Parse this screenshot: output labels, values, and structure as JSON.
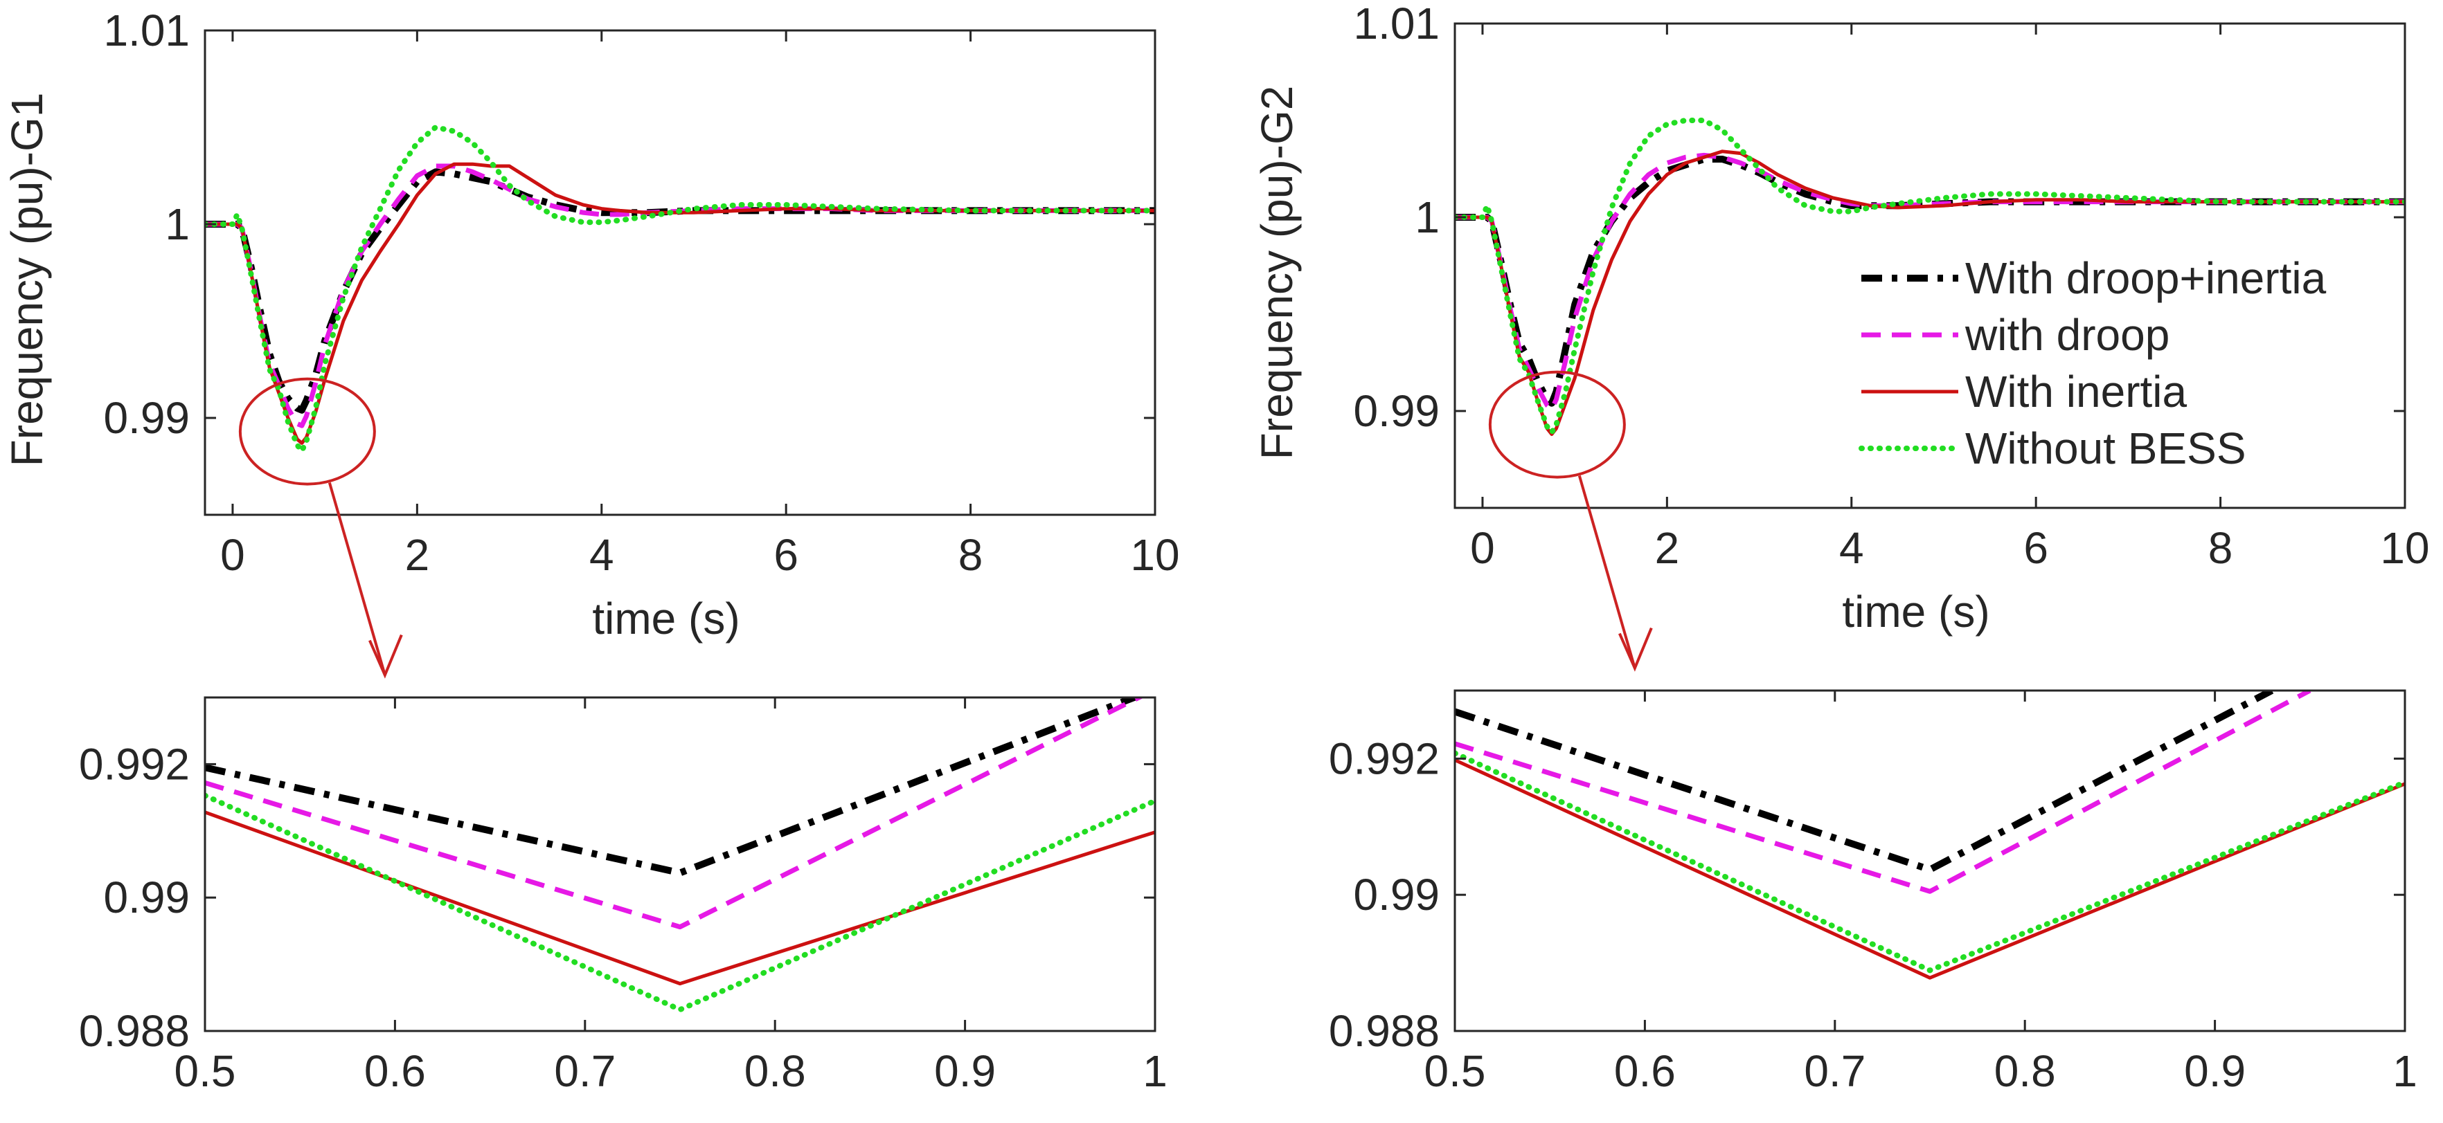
{
  "legend_entries": [
    {
      "name": "With droop+inertia",
      "color": "#000000",
      "style": "dashdot"
    },
    {
      "name": "with droop",
      "color": "#e619e6",
      "style": "dashed"
    },
    {
      "name": "With inertia",
      "color": "#cc1111",
      "style": "solid"
    },
    {
      "name": "Without BESS",
      "color": "#22dd22",
      "style": "dotted"
    }
  ],
  "colors": {
    "axis": "#262626",
    "callout": "#cc2222"
  },
  "chart_data": [
    {
      "id": "g1_main",
      "type": "line",
      "xlabel": "time (s)",
      "ylabel": "Frequency (pu)-G1",
      "xlim": [
        -0.3,
        10
      ],
      "ylim": [
        0.985,
        1.01
      ],
      "xticks": [
        0,
        2,
        4,
        6,
        8,
        10
      ],
      "xtick_labels": [
        "0",
        "2",
        "4",
        "6",
        "8",
        "10"
      ],
      "yticks": [
        0.99,
        1.0,
        1.01
      ],
      "ytick_labels": [
        "0.99",
        "1",
        "1.01"
      ],
      "grid": false,
      "legend": "none",
      "series": [
        {
          "name": "With droop+inertia",
          "x": [
            -0.3,
            0,
            0.05,
            0.1,
            0.2,
            0.3,
            0.4,
            0.5,
            0.6,
            0.7,
            0.75,
            0.8,
            0.9,
            1,
            1.2,
            1.4,
            1.6,
            1.8,
            2,
            2.2,
            2.4,
            2.6,
            2.8,
            3,
            3.2,
            3.5,
            3.8,
            4,
            4.2,
            4.5,
            5,
            5.5,
            6,
            6.5,
            7,
            8,
            9,
            10
          ],
          "y": [
            1,
            1,
            1,
            0.9998,
            0.9978,
            0.9955,
            0.9933,
            0.9919,
            0.991,
            0.9905,
            0.9904,
            0.9909,
            0.9922,
            0.994,
            0.9965,
            0.9985,
            0.9998,
            1.001,
            1.0022,
            1.0027,
            1.0026,
            1.0024,
            1.0022,
            1.0018,
            1.0014,
            1.001,
            1.0007,
            1.0006,
            1.0006,
            1.0006,
            1.0007,
            1.0007,
            1.0007,
            1.0007,
            1.0007,
            1.0007,
            1.0007,
            1.0007
          ]
        },
        {
          "name": "with droop",
          "x": [
            -0.3,
            0,
            0.05,
            0.1,
            0.2,
            0.3,
            0.4,
            0.5,
            0.6,
            0.7,
            0.75,
            0.8,
            0.9,
            1,
            1.2,
            1.4,
            1.6,
            1.8,
            2,
            2.2,
            2.4,
            2.6,
            2.8,
            3,
            3.2,
            3.5,
            3.8,
            4,
            4.2,
            4.5,
            5,
            5.5,
            6,
            6.5,
            7,
            8,
            9,
            10
          ],
          "y": [
            1,
            1,
            1,
            0.9998,
            0.9976,
            0.9951,
            0.9928,
            0.9917,
            0.9905,
            0.9897,
            0.9896,
            0.9901,
            0.9918,
            0.9938,
            0.9966,
            0.9986,
            1,
            1.0013,
            1.0025,
            1.003,
            1.003,
            1.0027,
            1.0023,
            1.0018,
            1.0013,
            1.0009,
            1.0006,
            1.0005,
            1.0005,
            1.0006,
            1.0007,
            1.0008,
            1.0008,
            1.0008,
            1.0007,
            1.0007,
            1.0007,
            1.0007
          ]
        },
        {
          "name": "With inertia",
          "x": [
            -0.3,
            0,
            0.05,
            0.1,
            0.2,
            0.3,
            0.4,
            0.5,
            0.6,
            0.7,
            0.75,
            0.8,
            0.9,
            1,
            1.2,
            1.4,
            1.6,
            1.8,
            2,
            2.2,
            2.4,
            2.6,
            2.8,
            3,
            3.2,
            3.5,
            3.8,
            4,
            4.2,
            4.5,
            5,
            5.5,
            6,
            6.5,
            7,
            8,
            9,
            10
          ],
          "y": [
            1,
            1,
            1,
            0.9998,
            0.9975,
            0.995,
            0.9926,
            0.9913,
            0.99,
            0.9889,
            0.9887,
            0.989,
            0.9903,
            0.992,
            0.995,
            0.9971,
            0.9986,
            1,
            1.0015,
            1.0026,
            1.0031,
            1.0031,
            1.003,
            1.003,
            1.0024,
            1.0015,
            1.001,
            1.0008,
            1.0007,
            1.0006,
            1.0006,
            1.0007,
            1.0008,
            1.0008,
            1.0007,
            1.0007,
            1.0007,
            1.0007
          ]
        },
        {
          "name": "Without BESS",
          "x": [
            -0.3,
            0,
            0.05,
            0.1,
            0.2,
            0.3,
            0.4,
            0.5,
            0.6,
            0.7,
            0.75,
            0.8,
            0.9,
            1,
            1.2,
            1.4,
            1.6,
            1.8,
            2,
            2.2,
            2.4,
            2.6,
            2.8,
            3,
            3.2,
            3.5,
            3.8,
            4,
            4.2,
            4.5,
            5,
            5.5,
            6,
            6.5,
            7,
            8,
            9,
            10
          ],
          "y": [
            1,
            1,
            1.0005,
            0.9998,
            0.9974,
            0.9949,
            0.9925,
            0.9915,
            0.9898,
            0.9886,
            0.9883,
            0.9888,
            0.9905,
            0.9928,
            0.9962,
            0.9988,
            1.0008,
            1.0028,
            1.0042,
            1.005,
            1.0048,
            1.0042,
            1.0032,
            1.002,
            1.0012,
            1.0004,
            1.0001,
            1.0001,
            1.0002,
            1.0004,
            1.0008,
            1.001,
            1.001,
            1.0009,
            1.0008,
            1.0007,
            1.0007,
            1.0007
          ]
        }
      ]
    },
    {
      "id": "g2_main",
      "type": "line",
      "xlabel": "time (s)",
      "ylabel": "Frequency (pu)-G2",
      "xlim": [
        -0.3,
        10
      ],
      "ylim": [
        0.985,
        1.01
      ],
      "xticks": [
        0,
        2,
        4,
        6,
        8,
        10
      ],
      "xtick_labels": [
        "0",
        "2",
        "4",
        "6",
        "8",
        "10"
      ],
      "yticks": [
        0.99,
        1.0,
        1.01
      ],
      "ytick_labels": [
        "0.99",
        "1",
        "1.01"
      ],
      "grid": false,
      "legend": "right",
      "series": [
        {
          "name": "With droop+inertia",
          "x": [
            -0.3,
            0,
            0.05,
            0.1,
            0.2,
            0.3,
            0.4,
            0.5,
            0.6,
            0.7,
            0.75,
            0.8,
            0.9,
            1,
            1.2,
            1.4,
            1.6,
            1.8,
            2,
            2.2,
            2.4,
            2.6,
            2.8,
            3,
            3.2,
            3.5,
            3.8,
            4,
            4.2,
            4.5,
            5,
            5.5,
            6,
            6.5,
            7,
            8,
            9,
            10
          ],
          "y": [
            1,
            1,
            1,
            0.9998,
            0.9977,
            0.9955,
            0.9935,
            0.9927,
            0.9915,
            0.9906,
            0.9904,
            0.991,
            0.9932,
            0.9955,
            0.9982,
            0.9998,
            1.001,
            1.0018,
            1.0024,
            1.0027,
            1.003,
            1.003,
            1.0027,
            1.0023,
            1.0018,
            1.0012,
            1.0008,
            1.0006,
            1.0006,
            1.0006,
            1.0007,
            1.0008,
            1.0008,
            1.0008,
            1.0008,
            1.0008,
            1.0008,
            1.0008
          ]
        },
        {
          "name": "with droop",
          "x": [
            -0.3,
            0,
            0.05,
            0.1,
            0.2,
            0.3,
            0.4,
            0.5,
            0.6,
            0.7,
            0.75,
            0.8,
            0.9,
            1,
            1.2,
            1.4,
            1.6,
            1.8,
            2,
            2.2,
            2.4,
            2.6,
            2.8,
            3,
            3.2,
            3.5,
            3.8,
            4,
            4.2,
            4.5,
            5,
            5.5,
            6,
            6.5,
            7,
            8,
            9,
            10
          ],
          "y": [
            1,
            1,
            1,
            0.9998,
            0.9976,
            0.9953,
            0.9932,
            0.9922,
            0.9912,
            0.9903,
            0.9901,
            0.9906,
            0.9926,
            0.9948,
            0.9978,
            0.9998,
            1.0012,
            1.0022,
            1.0028,
            1.0031,
            1.0032,
            1.0031,
            1.0028,
            1.0024,
            1.0019,
            1.0013,
            1.0009,
            1.0007,
            1.0006,
            1.0006,
            1.0007,
            1.0008,
            1.0008,
            1.0008,
            1.0008,
            1.0008,
            1.0008,
            1.0008
          ]
        },
        {
          "name": "With inertia",
          "x": [
            -0.3,
            0,
            0.05,
            0.1,
            0.2,
            0.3,
            0.4,
            0.5,
            0.6,
            0.7,
            0.75,
            0.8,
            0.9,
            1,
            1.2,
            1.4,
            1.6,
            1.8,
            2,
            2.2,
            2.4,
            2.6,
            2.8,
            3,
            3.2,
            3.5,
            3.8,
            4,
            4.2,
            4.5,
            5,
            5.5,
            6,
            6.5,
            7,
            8,
            9,
            10
          ],
          "y": [
            1,
            1,
            1,
            0.9998,
            0.9975,
            0.9951,
            0.9928,
            0.992,
            0.9905,
            0.9891,
            0.9888,
            0.9891,
            0.9904,
            0.9917,
            0.9952,
            0.9978,
            0.9998,
            1.0012,
            1.0022,
            1.0028,
            1.0031,
            1.0034,
            1.0033,
            1.0028,
            1.0022,
            1.0015,
            1.001,
            1.0008,
            1.0006,
            1.0005,
            1.0006,
            1.0008,
            1.0009,
            1.0009,
            1.0008,
            1.0008,
            1.0008,
            1.0008
          ]
        },
        {
          "name": "Without BESS",
          "x": [
            -0.3,
            0,
            0.05,
            0.1,
            0.2,
            0.3,
            0.4,
            0.5,
            0.6,
            0.7,
            0.75,
            0.8,
            0.9,
            1,
            1.2,
            1.4,
            1.6,
            1.8,
            2,
            2.2,
            2.4,
            2.6,
            2.8,
            3,
            3.2,
            3.5,
            3.8,
            4,
            4.2,
            4.5,
            5,
            5.5,
            6,
            6.5,
            7,
            8,
            9,
            10
          ],
          "y": [
            1,
            1,
            1.0006,
            0.9998,
            0.9974,
            0.995,
            0.9927,
            0.9919,
            0.9905,
            0.9892,
            0.9889,
            0.9893,
            0.991,
            0.9932,
            0.9972,
            1.0005,
            1.0028,
            1.0042,
            1.0048,
            1.005,
            1.005,
            1.0045,
            1.0035,
            1.0025,
            1.0015,
            1.0006,
            1.0003,
            1.0003,
            1.0005,
            1.0007,
            1.001,
            1.0012,
            1.0012,
            1.0011,
            1.001,
            1.0008,
            1.0008,
            1.0008
          ]
        }
      ]
    },
    {
      "id": "g1_zoom",
      "type": "line",
      "xlabel": "",
      "ylabel": "",
      "xlim": [
        0.5,
        1
      ],
      "ylim": [
        0.988,
        0.993
      ],
      "xticks": [
        0.5,
        0.6,
        0.7,
        0.8,
        0.9,
        1
      ],
      "xtick_labels": [
        "0.5",
        "0.6",
        "0.7",
        "0.8",
        "0.9",
        "1"
      ],
      "yticks": [
        0.988,
        0.99,
        0.992
      ],
      "ytick_labels": [
        "0.988",
        "0.99",
        "0.992"
      ],
      "grid": false,
      "legend": "none",
      "series": [
        {
          "name": "With droop+inertia",
          "x": [
            0.5,
            0.75,
            1
          ],
          "y": [
            0.99195,
            0.99037,
            0.99312
          ]
        },
        {
          "name": "with droop",
          "x": [
            0.5,
            0.75,
            1
          ],
          "y": [
            0.99172,
            0.98956,
            0.99312
          ]
        },
        {
          "name": "With inertia",
          "x": [
            0.5,
            0.75,
            1
          ],
          "y": [
            0.99128,
            0.98871,
            0.99098
          ]
        },
        {
          "name": "Without BESS",
          "x": [
            0.5,
            0.75,
            1
          ],
          "y": [
            0.99153,
            0.98832,
            0.99145
          ]
        }
      ]
    },
    {
      "id": "g2_zoom",
      "type": "line",
      "xlabel": "",
      "ylabel": "",
      "xlim": [
        0.5,
        1
      ],
      "ylim": [
        0.988,
        0.993
      ],
      "xticks": [
        0.5,
        0.6,
        0.7,
        0.8,
        0.9,
        1
      ],
      "xtick_labels": [
        "0.5",
        "0.6",
        "0.7",
        "0.8",
        "0.9",
        "1"
      ],
      "yticks": [
        0.988,
        0.99,
        0.992
      ],
      "ytick_labels": [
        "0.988",
        "0.99",
        "0.992"
      ],
      "grid": false,
      "legend": "none",
      "series": [
        {
          "name": "With droop+inertia",
          "x": [
            0.5,
            0.75,
            0.93
          ],
          "y": [
            0.99269,
            0.99037,
            0.993
          ]
        },
        {
          "name": "with droop",
          "x": [
            0.5,
            0.75,
            0.95
          ],
          "y": [
            0.99222,
            0.99005,
            0.993
          ]
        },
        {
          "name": "With inertia",
          "x": [
            0.5,
            0.75,
            1
          ],
          "y": [
            0.99198,
            0.98878,
            0.99163
          ]
        },
        {
          "name": "Without BESS",
          "x": [
            0.5,
            0.75,
            1
          ],
          "y": [
            0.99208,
            0.98889,
            0.99165
          ]
        }
      ]
    }
  ]
}
